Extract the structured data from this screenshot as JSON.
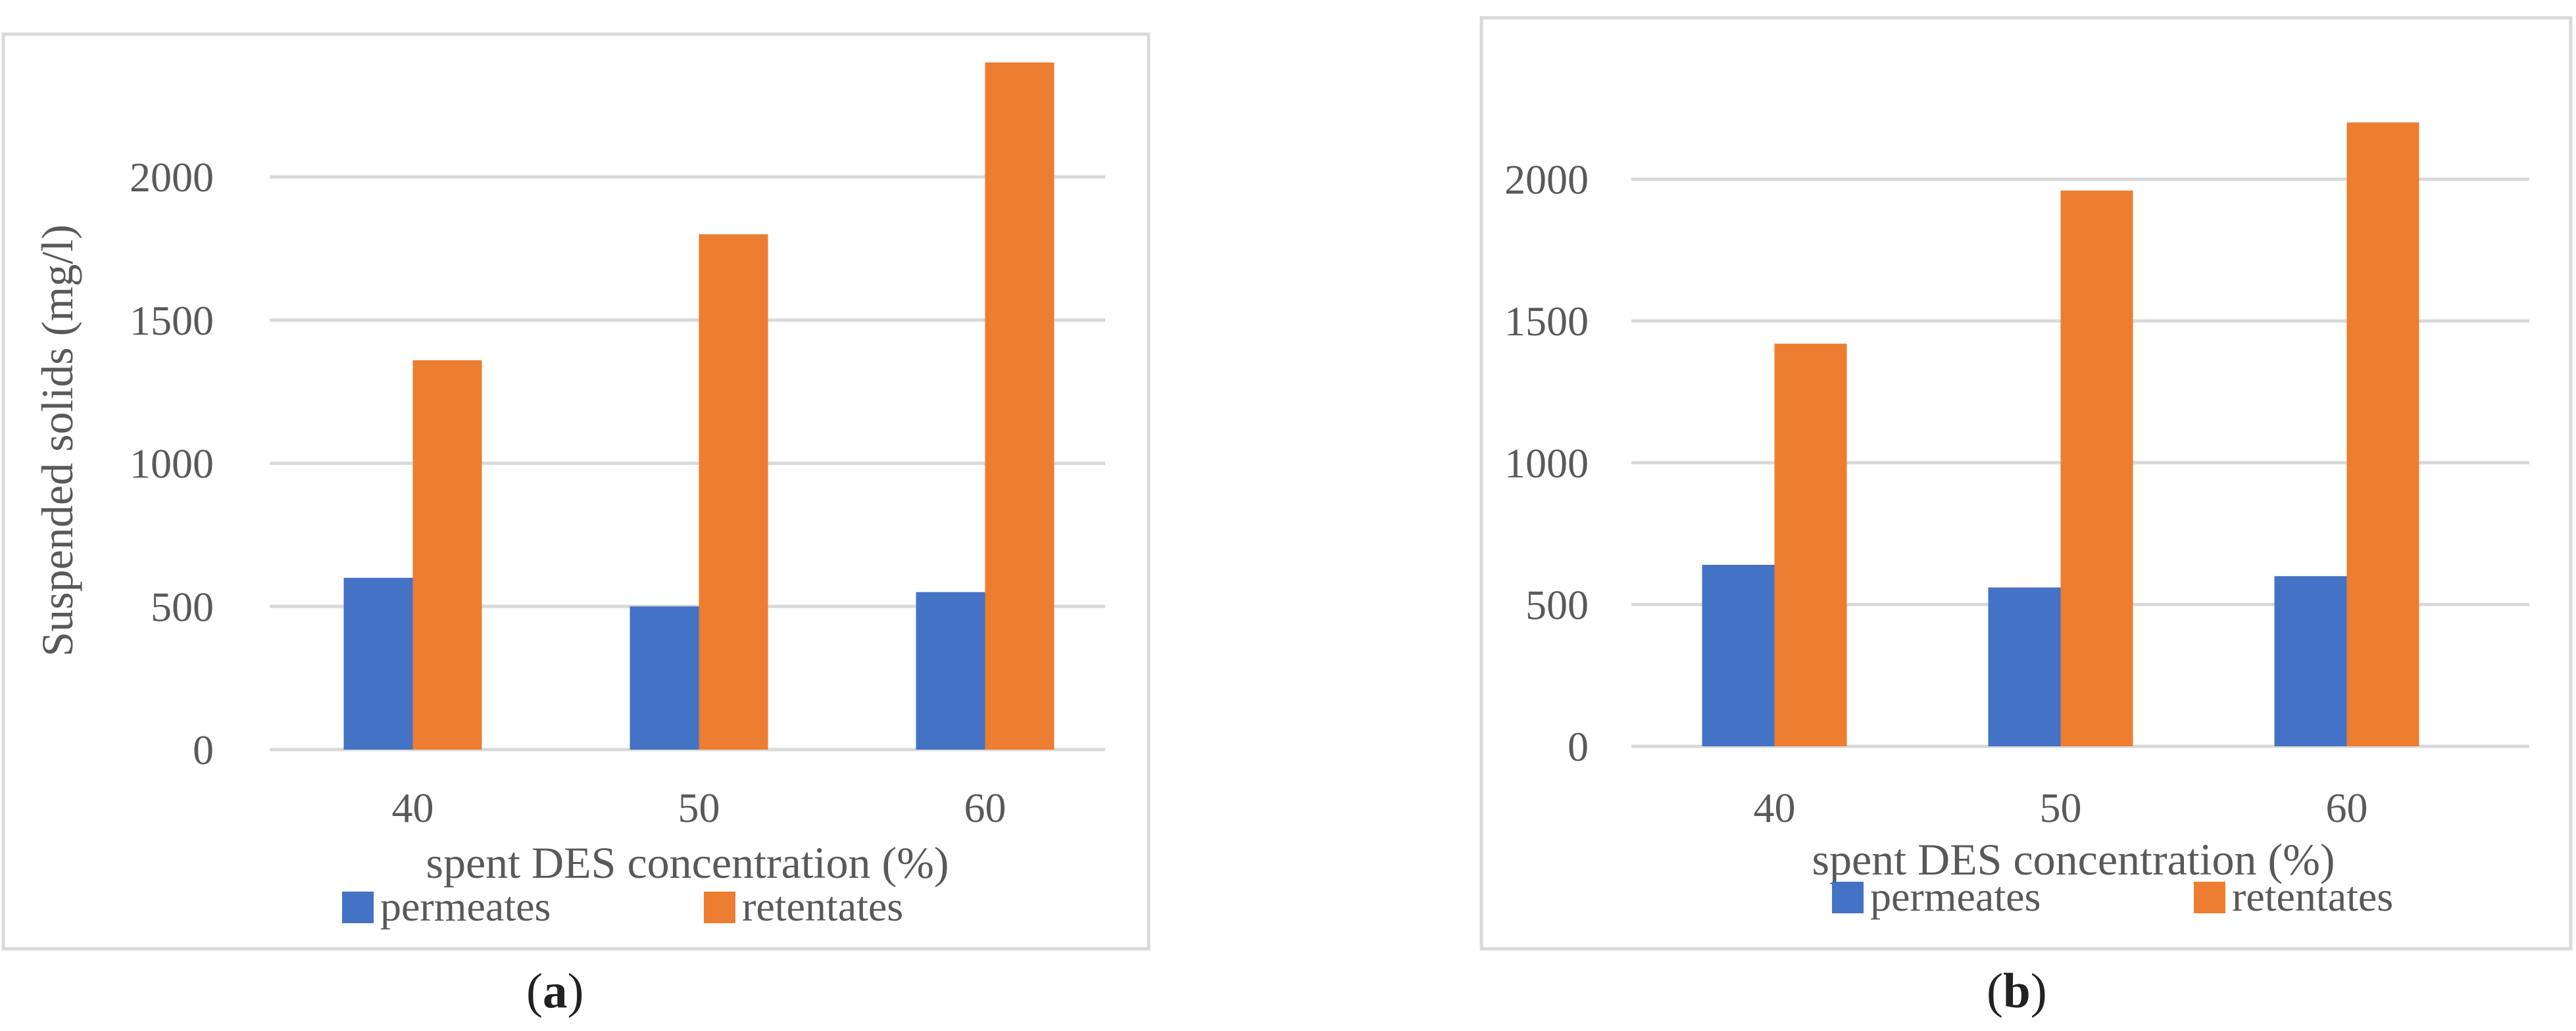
{
  "colors": {
    "permeates": "#4472c4",
    "retentates": "#ed7d31",
    "grid": "#d9d9d9",
    "text": "#595959"
  },
  "chart_data": [
    {
      "type": "bar",
      "panel": "a",
      "categories": [
        "40",
        "50",
        "60"
      ],
      "series": [
        {
          "name": "permeates",
          "values": [
            600,
            500,
            550
          ]
        },
        {
          "name": "retentates",
          "values": [
            1360,
            1800,
            2400
          ]
        }
      ],
      "title": "",
      "xlabel": "spent DES concentration (%)",
      "ylabel": "Suspended solids (mg/l)",
      "ylim": [
        0,
        2400
      ],
      "yticks": [
        0,
        500,
        1000,
        1500,
        2000
      ],
      "grid": true,
      "legend": "bottom"
    },
    {
      "type": "bar",
      "panel": "b",
      "categories": [
        "40",
        "50",
        "60"
      ],
      "series": [
        {
          "name": "permeates",
          "values": [
            640,
            560,
            600
          ]
        },
        {
          "name": "retentates",
          "values": [
            1420,
            1960,
            2200
          ]
        }
      ],
      "title": "",
      "xlabel": "spent DES concentration (%)",
      "ylabel": "",
      "ylim": [
        0,
        2400
      ],
      "yticks": [
        0,
        500,
        1000,
        1500,
        2000
      ],
      "grid": true,
      "legend": "bottom"
    }
  ],
  "captions": [
    {
      "open": "(",
      "letter": "a",
      "close": ")"
    },
    {
      "open": "(",
      "letter": "b",
      "close": ")"
    }
  ]
}
